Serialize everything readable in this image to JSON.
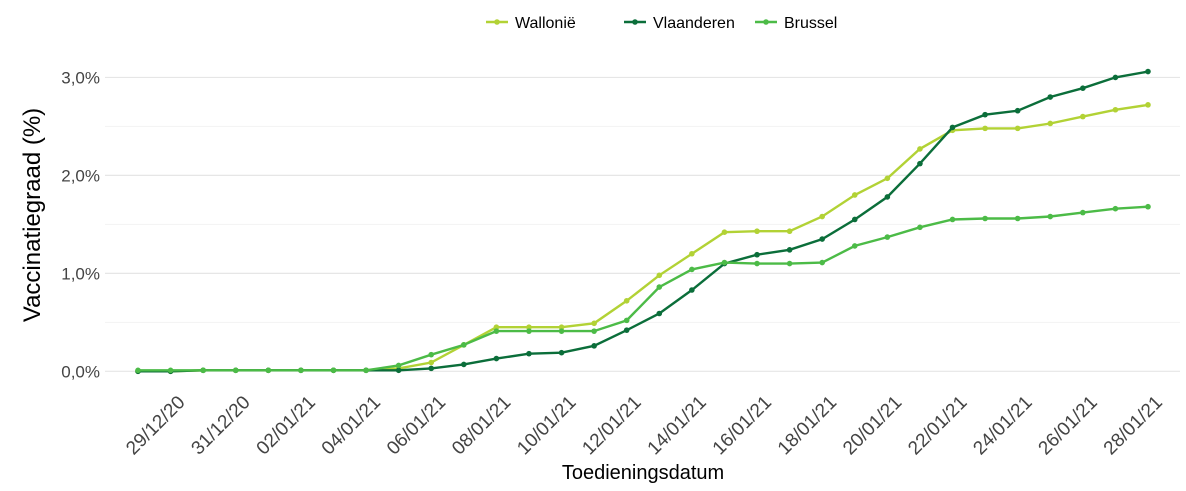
{
  "chart_data": {
    "type": "line",
    "y_label": "Vaccinatiegraad (%)",
    "x_label": "Toedieningsdatum",
    "categories": [
      null,
      "29/12/20",
      null,
      "31/12/20",
      null,
      "02/01/21",
      null,
      "04/01/21",
      null,
      "06/01/21",
      null,
      "08/01/21",
      null,
      "10/01/21",
      null,
      "12/01/21",
      null,
      "14/01/21",
      null,
      "16/01/21",
      null,
      "18/01/21",
      null,
      "20/01/21",
      null,
      "22/01/21",
      null,
      "24/01/21",
      null,
      "26/01/21",
      null,
      "28/01/21"
    ],
    "series": [
      {
        "name": "Wallonië",
        "color": "#b2d235",
        "values": [
          0.0,
          0.0,
          0.01,
          0.01,
          0.01,
          0.01,
          0.01,
          0.01,
          0.03,
          0.09,
          0.27,
          0.45,
          0.45,
          0.45,
          0.49,
          0.72,
          0.98,
          1.2,
          1.42,
          1.43,
          1.43,
          1.58,
          1.8,
          1.97,
          2.27,
          2.46,
          2.48,
          2.48,
          2.53,
          2.6,
          2.67,
          2.72
        ]
      },
      {
        "name": "Vlaanderen",
        "color": "#0b6e3a",
        "values": [
          0.0,
          0.0,
          0.01,
          0.01,
          0.01,
          0.01,
          0.01,
          0.01,
          0.01,
          0.03,
          0.07,
          0.13,
          0.18,
          0.19,
          0.26,
          0.42,
          0.59,
          0.83,
          1.1,
          1.19,
          1.24,
          1.35,
          1.55,
          1.78,
          2.12,
          2.49,
          2.62,
          2.66,
          2.8,
          2.89,
          3.0,
          3.06
        ]
      },
      {
        "name": "Brussel",
        "color": "#4cbb47",
        "values": [
          0.01,
          0.01,
          0.01,
          0.01,
          0.01,
          0.01,
          0.01,
          0.01,
          0.06,
          0.17,
          0.27,
          0.41,
          0.41,
          0.41,
          0.41,
          0.52,
          0.86,
          1.04,
          1.11,
          1.1,
          1.1,
          1.11,
          1.28,
          1.37,
          1.47,
          1.55,
          1.56,
          1.56,
          1.58,
          1.62,
          1.66,
          1.68
        ]
      }
    ],
    "ylim": [
      -0.15,
      3.28
    ],
    "yticks": [
      {
        "value": 0,
        "label": "0,0%"
      },
      {
        "value": 1,
        "label": "1,0%"
      },
      {
        "value": 2,
        "label": "2,0%"
      },
      {
        "value": 3,
        "label": "3,0%"
      }
    ],
    "minor_yticks": [
      0.5,
      1.5,
      2.5
    ],
    "grid": true,
    "legend": "top"
  }
}
